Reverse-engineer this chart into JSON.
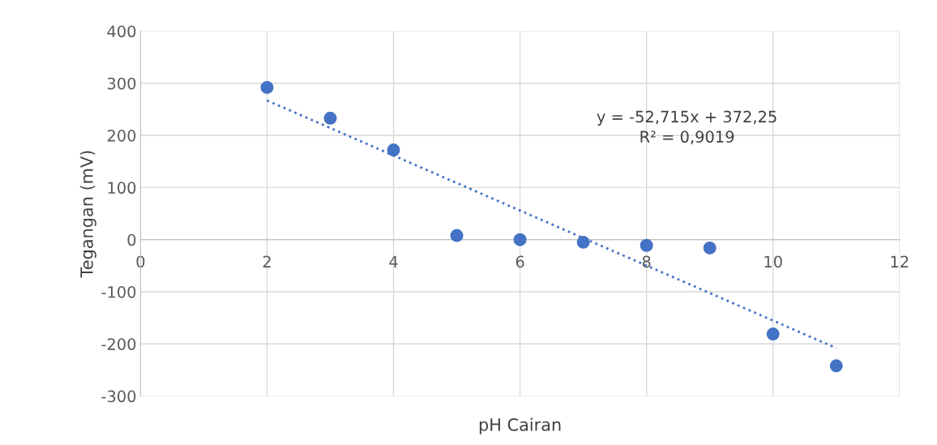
{
  "chart_data": {
    "type": "scatter",
    "xlabel": "pH Cairan",
    "ylabel": "Tegangan (mV)",
    "series": [
      {
        "color": "#4472c4",
        "x": [
          2,
          3,
          4,
          5,
          6,
          7,
          8,
          9,
          10,
          11
        ],
        "values": [
          292,
          233,
          172,
          8,
          0,
          -5,
          -11,
          -16,
          -181,
          -242
        ],
        "marker": "circle"
      },
      {
        "type": "line",
        "color": "#4472c4",
        "x": [
          2,
          11
        ],
        "values": [
          267,
          -208
        ],
        "line_style": "dotted",
        "marker": "none"
      }
    ],
    "annotations": [
      "y = -52,715x + 372,25",
      "R² = 0,9019"
    ],
    "xlim": [
      0,
      12
    ],
    "xticks": [
      0,
      2,
      4,
      6,
      8,
      10,
      12
    ],
    "ylim": [
      -300,
      400
    ],
    "yticks": [
      -300,
      -200,
      -100,
      0,
      100,
      200,
      300,
      400
    ],
    "grid": true
  }
}
